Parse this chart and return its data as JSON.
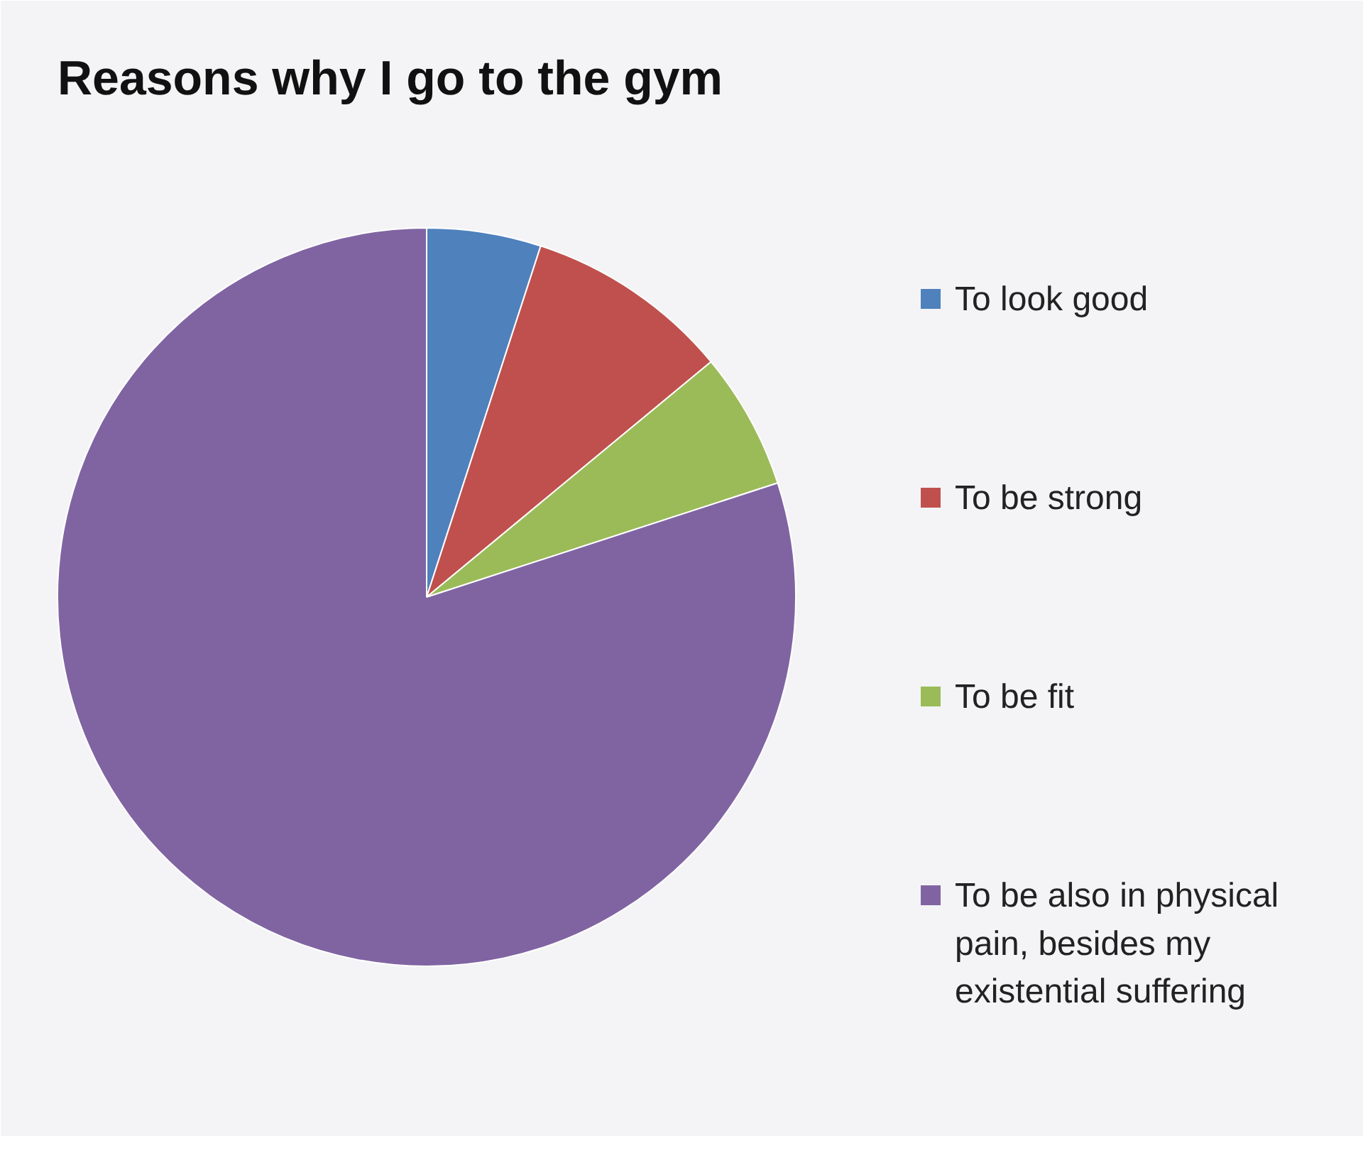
{
  "chart_data": {
    "type": "pie",
    "title": "Reasons why I go to the gym",
    "categories": [
      "To look good",
      "To be strong",
      "To be fit",
      "To be also in physical pain, besides my existential suffering"
    ],
    "values": [
      5,
      9,
      6,
      80
    ],
    "colors": [
      "#4f81bd",
      "#c0504d",
      "#9bbb59",
      "#8064a2"
    ],
    "legend": "right"
  }
}
